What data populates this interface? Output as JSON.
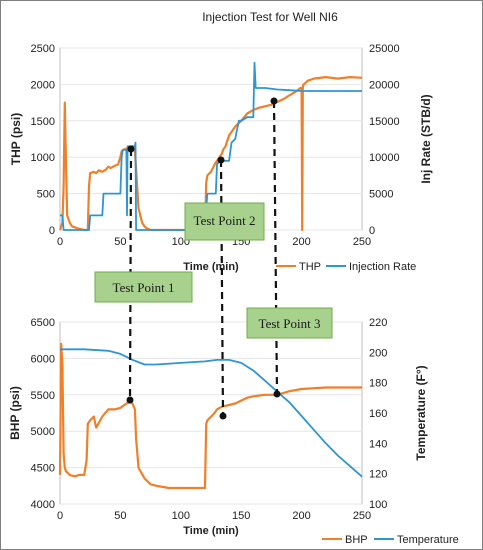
{
  "colors": {
    "orange": "#f07f2a",
    "blue": "#2e95d3",
    "grid": "#e6e6e6"
  },
  "test_points": [
    {
      "label": "Test Point 1"
    },
    {
      "label": "Test Point 2"
    },
    {
      "label": "Test Point 3"
    }
  ],
  "chart_data": [
    {
      "type": "line",
      "title": "Injection Test for Well NI6",
      "xlabel": "Time (min)",
      "ylabel": "THP (psi)",
      "y2label": "Inj Rate (STB/d)",
      "xlim": [
        0,
        250
      ],
      "ylim": [
        0,
        2500
      ],
      "y2lim": [
        0,
        25000
      ],
      "xticks": [
        "0",
        "50",
        "100",
        "150",
        "200",
        "250"
      ],
      "yticks": [
        "0",
        "500",
        "1000",
        "1500",
        "2000",
        "2500"
      ],
      "y2ticks": [
        "0",
        "5000",
        "10000",
        "15000",
        "20000",
        "25000"
      ],
      "grid": true,
      "legend": "bottom-right",
      "series": [
        {
          "name": "THP",
          "axis": "left",
          "color": "#f07f2a",
          "x": [
            0,
            2,
            3,
            4,
            5,
            6,
            8,
            10,
            15,
            20,
            23,
            24,
            25,
            28,
            30,
            32,
            35,
            38,
            40,
            42,
            45,
            48,
            50,
            51,
            52,
            55,
            58,
            60,
            62,
            65,
            68,
            70,
            72,
            75,
            80,
            100,
            120,
            121,
            122,
            125,
            128,
            130,
            132,
            134,
            135,
            137,
            138,
            140,
            145,
            150,
            155,
            160,
            165,
            170,
            175,
            180,
            185,
            190,
            195,
            199,
            200,
            200.5,
            201,
            201.5,
            202,
            205,
            210,
            220,
            230,
            240,
            250
          ],
          "y": [
            0,
            100,
            600,
            1750,
            900,
            200,
            100,
            50,
            20,
            0,
            0,
            600,
            780,
            800,
            780,
            820,
            800,
            830,
            870,
            850,
            880,
            900,
            1000,
            1080,
            1100,
            1120,
            1120,
            1150,
            1100,
            300,
            100,
            50,
            20,
            0,
            0,
            0,
            0,
            650,
            750,
            800,
            900,
            950,
            1000,
            1050,
            1100,
            1150,
            1200,
            1300,
            1420,
            1500,
            1600,
            1650,
            1680,
            1700,
            1720,
            1760,
            1800,
            1850,
            1900,
            1950,
            1950,
            0,
            1950,
            2000,
            2000,
            2050,
            2080,
            2100,
            2080,
            2100,
            2090
          ]
        },
        {
          "name": "Injection Rate",
          "axis": "right",
          "color": "#2e95d3",
          "x": [
            0,
            2,
            3,
            8,
            10,
            15,
            20,
            24,
            25,
            30,
            35,
            36,
            40,
            45,
            48,
            50,
            51,
            52,
            55,
            55.5,
            56,
            60,
            62,
            62.5,
            63,
            65,
            66,
            70,
            80,
            100,
            120,
            121,
            122,
            125,
            129,
            130,
            132,
            135,
            138,
            140,
            142,
            145,
            148,
            150,
            155,
            160,
            161,
            162,
            165,
            170,
            180,
            190,
            200,
            220,
            240,
            250
          ],
          "y": [
            2000,
            2000,
            0,
            0,
            0,
            0,
            0,
            0,
            2000,
            2000,
            2000,
            5000,
            5000,
            5000,
            5000,
            5000,
            10000,
            11000,
            11000,
            2000,
            11500,
            11500,
            11500,
            12000,
            0,
            0,
            0,
            0,
            0,
            0,
            0,
            3000,
            5000,
            5000,
            5000,
            9000,
            9500,
            9500,
            9500,
            9500,
            12000,
            12500,
            15000,
            15000,
            15500,
            15500,
            23000,
            19500,
            19500,
            19500,
            19300,
            19200,
            19100,
            19100,
            19100,
            19100
          ]
        }
      ]
    },
    {
      "type": "line",
      "title": "",
      "xlabel": "Time (min)",
      "ylabel": "BHP (psi)",
      "y2label": "Temperature (F°)",
      "xlim": [
        0,
        250
      ],
      "ylim": [
        4000,
        6500
      ],
      "y2lim": [
        100,
        220
      ],
      "xticks": [
        "0",
        "50",
        "100",
        "150",
        "200",
        "250"
      ],
      "yticks": [
        "4000",
        "4500",
        "5000",
        "5500",
        "6000",
        "6500"
      ],
      "y2ticks": [
        "100",
        "120",
        "140",
        "160",
        "180",
        "200",
        "220"
      ],
      "grid": true,
      "legend": "bottom-right",
      "series": [
        {
          "name": "BHP",
          "axis": "left",
          "color": "#f07f2a",
          "x": [
            0,
            1,
            2,
            3,
            4,
            5,
            8,
            12,
            16,
            20,
            22,
            23,
            25,
            28,
            30,
            35,
            40,
            45,
            50,
            55,
            58,
            60,
            62,
            63,
            65,
            70,
            75,
            80,
            90,
            100,
            110,
            120,
            121,
            122,
            125,
            128,
            130,
            132,
            135,
            140,
            145,
            150,
            155,
            160,
            165,
            170,
            175,
            180,
            190,
            200,
            220,
            240,
            250
          ],
          "y": [
            4400,
            6200,
            5900,
            4700,
            4500,
            4450,
            4400,
            4380,
            4400,
            4400,
            4600,
            5100,
            5150,
            5200,
            5050,
            5200,
            5300,
            5300,
            5320,
            5380,
            5400,
            5380,
            5300,
            4900,
            4500,
            4350,
            4270,
            4250,
            4220,
            4220,
            4220,
            4220,
            5100,
            5150,
            5200,
            5250,
            5300,
            5320,
            5340,
            5360,
            5380,
            5420,
            5460,
            5480,
            5490,
            5500,
            5500,
            5500,
            5550,
            5580,
            5600,
            5600,
            5600
          ]
        },
        {
          "name": "Temperature",
          "axis": "right",
          "color": "#2e95d3",
          "x": [
            0,
            20,
            40,
            50,
            60,
            70,
            80,
            100,
            120,
            130,
            140,
            150,
            160,
            170,
            180,
            190,
            200,
            210,
            220,
            230,
            240,
            250
          ],
          "y": [
            202,
            202,
            201,
            199,
            195,
            192,
            192,
            193,
            194,
            195,
            195,
            193,
            188,
            181,
            174,
            167,
            158,
            149,
            140,
            132,
            125,
            118
          ]
        }
      ]
    }
  ]
}
